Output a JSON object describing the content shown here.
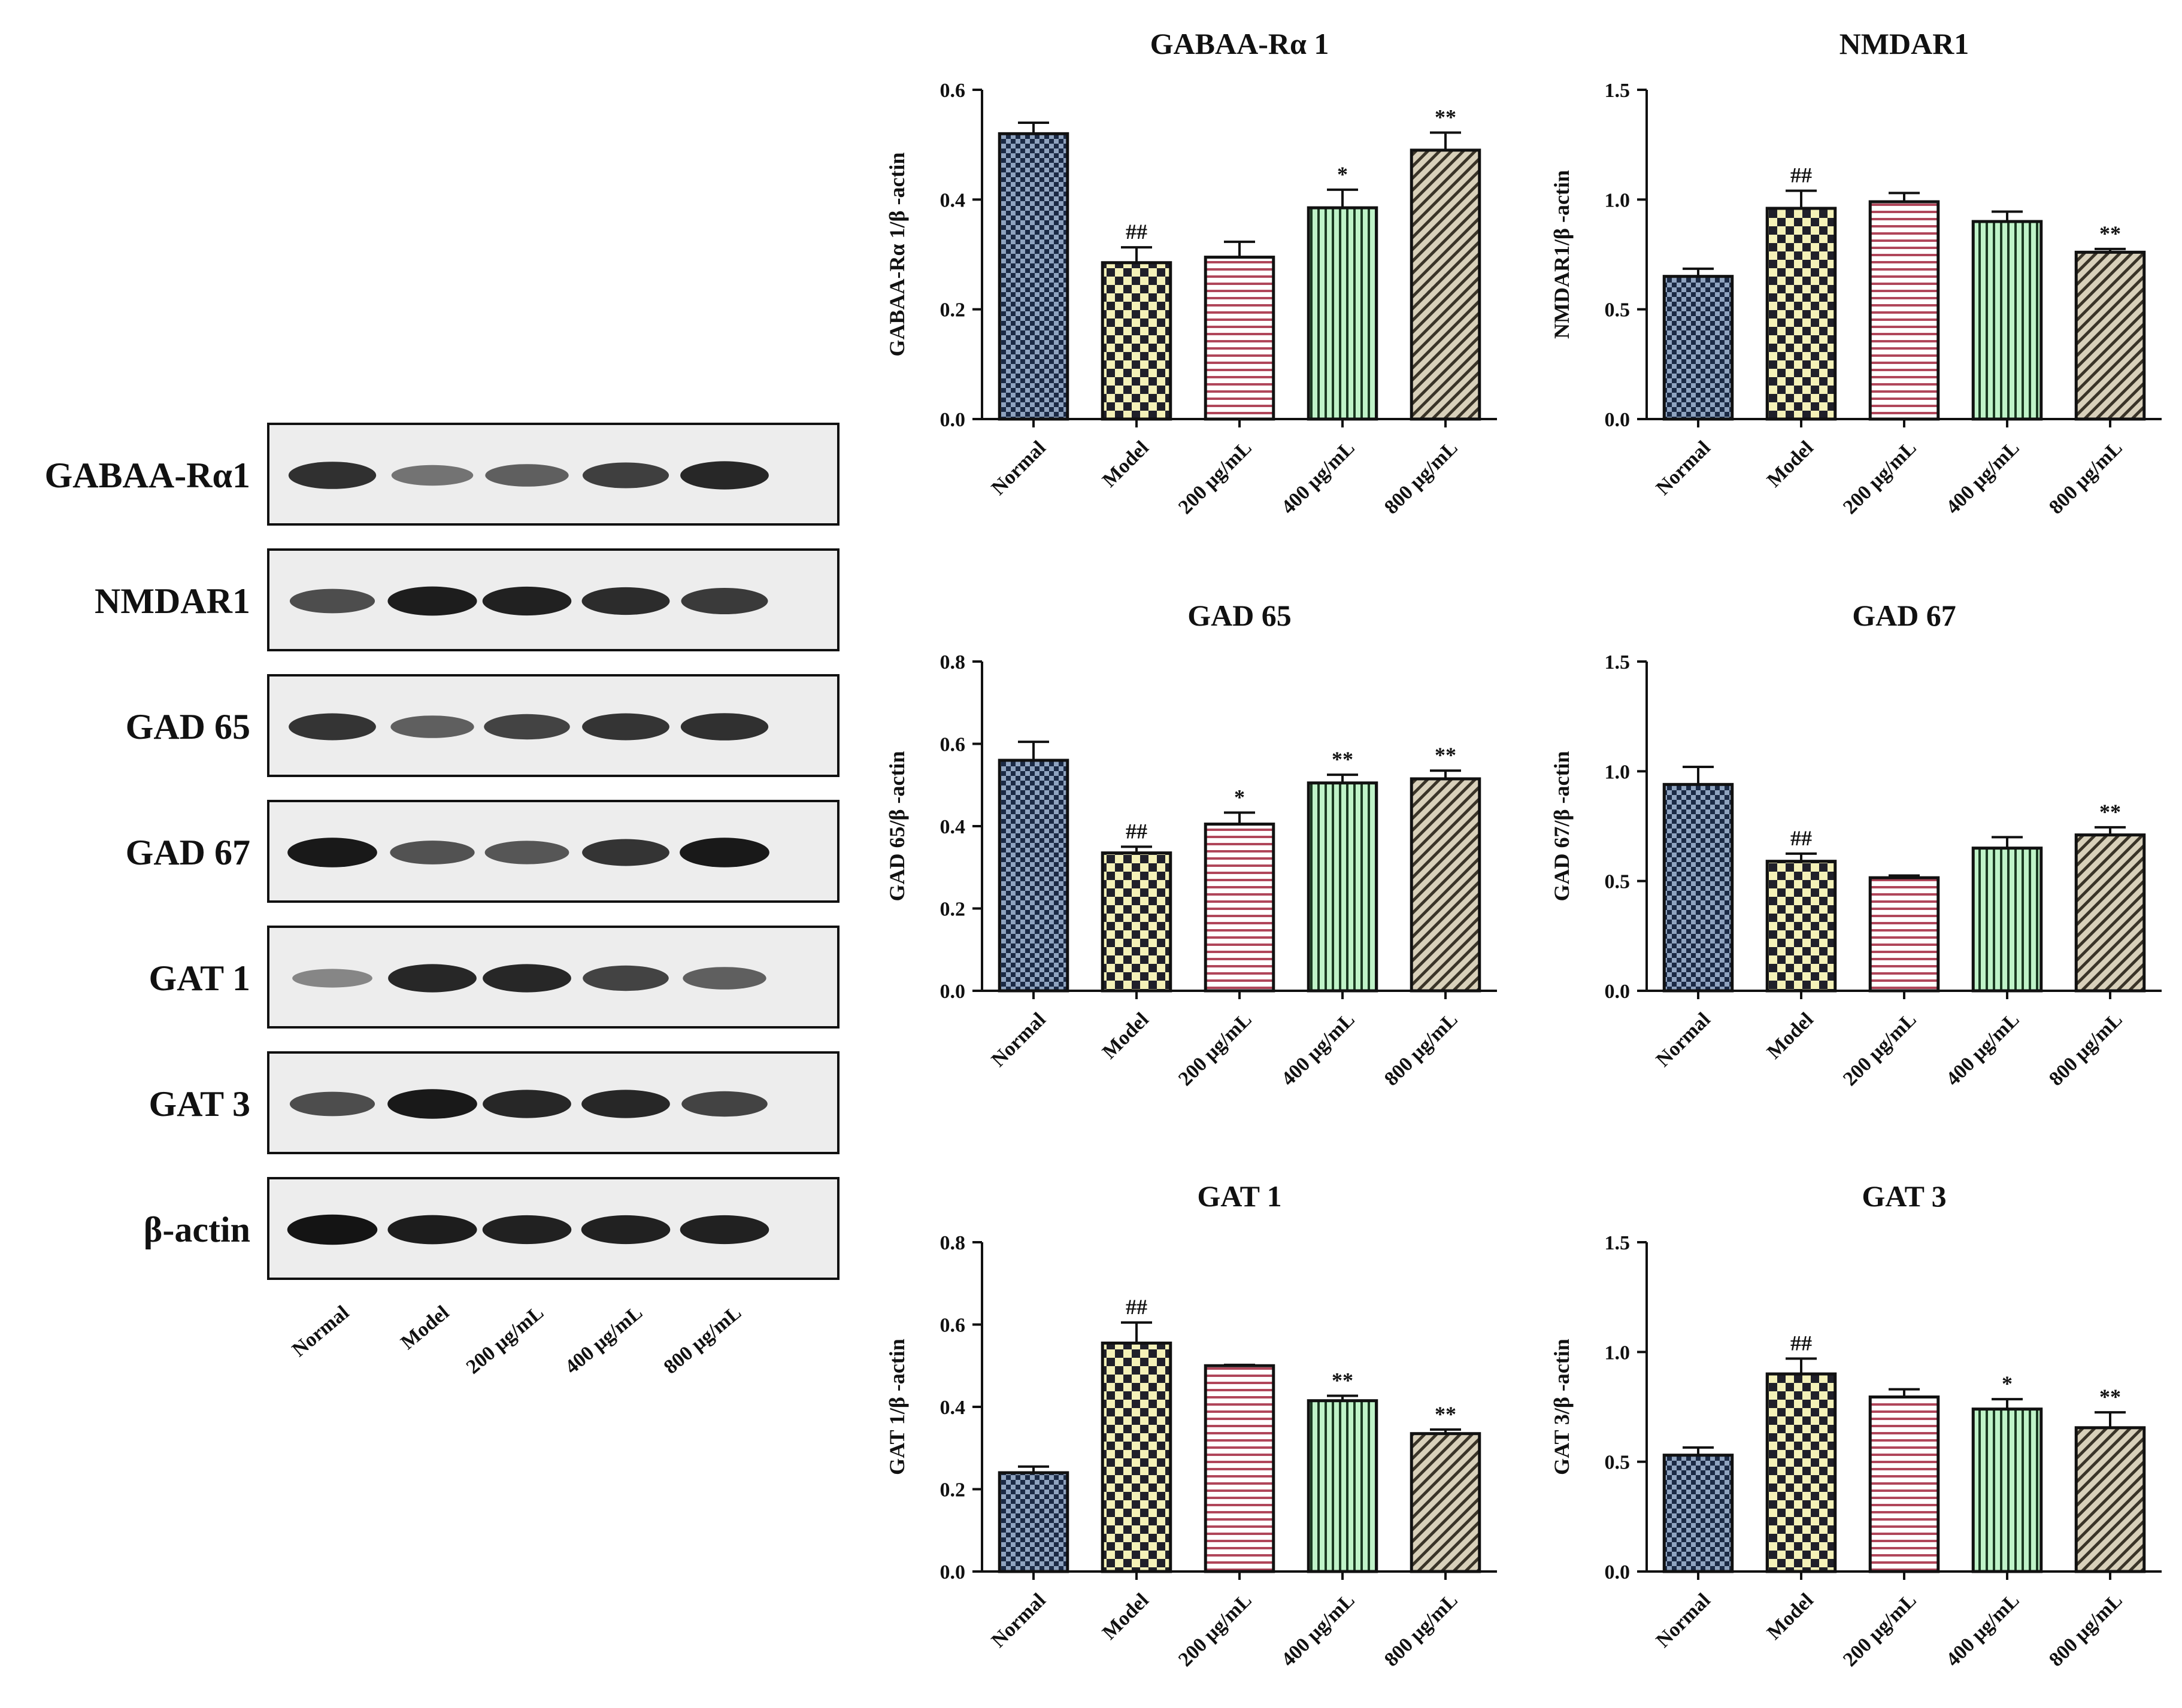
{
  "groups": [
    "Normal",
    "Model",
    "200 μg/mL",
    "400 μg/mL",
    "800 μg/mL"
  ],
  "western_blot": {
    "rows": [
      {
        "label": "GABAA-Rα1",
        "intensity": [
          0.8,
          0.45,
          0.55,
          0.72,
          0.85
        ]
      },
      {
        "label": "NMDAR1",
        "intensity": [
          0.65,
          0.9,
          0.88,
          0.82,
          0.75
        ]
      },
      {
        "label": "GAD 65",
        "intensity": [
          0.78,
          0.55,
          0.7,
          0.78,
          0.8
        ]
      },
      {
        "label": "GAD 67",
        "intensity": [
          0.92,
          0.62,
          0.6,
          0.78,
          0.92
        ]
      },
      {
        "label": "GAT 1",
        "intensity": [
          0.35,
          0.85,
          0.85,
          0.7,
          0.55
        ]
      },
      {
        "label": "GAT 3",
        "intensity": [
          0.65,
          0.92,
          0.85,
          0.85,
          0.7
        ]
      },
      {
        "label": "β-actin",
        "intensity": [
          0.95,
          0.9,
          0.88,
          0.88,
          0.88
        ]
      }
    ]
  },
  "fills": [
    {
      "bg": "#8fa3bf",
      "fg": "#1b2a45",
      "pattern": "checker"
    },
    {
      "bg": "#f4f1b8",
      "fg": "#20202a",
      "pattern": "checker-big"
    },
    {
      "bg": "#ffffff",
      "fg": "#b0465a",
      "pattern": "hlines"
    },
    {
      "bg": "#bff3c8",
      "fg": "#1b3a22",
      "pattern": "vlines"
    },
    {
      "bg": "#d8d0ba",
      "fg": "#3a3428",
      "pattern": "diag"
    }
  ],
  "chart_data": [
    {
      "type": "bar",
      "title": "GABAA-Rα 1",
      "ylabel": "GABAA-Rα 1/β -actin",
      "categories": [
        "Normal",
        "Model",
        "200 μg/mL",
        "400 μg/mL",
        "800 μg/mL"
      ],
      "values": [
        0.52,
        0.285,
        0.295,
        0.385,
        0.49
      ],
      "errors": [
        0.02,
        0.028,
        0.028,
        0.033,
        0.032
      ],
      "ylim": [
        0,
        0.6
      ],
      "yticks": [
        "0.0",
        "0.2",
        "0.4",
        "0.6"
      ],
      "annotations": [
        "",
        "##",
        "",
        "*",
        "**"
      ]
    },
    {
      "type": "bar",
      "title": "NMDAR1",
      "ylabel": "NMDAR1/β -actin",
      "categories": [
        "Normal",
        "Model",
        "200 μg/mL",
        "400 μg/mL",
        "800 μg/mL"
      ],
      "values": [
        0.65,
        0.96,
        0.99,
        0.9,
        0.76
      ],
      "errors": [
        0.035,
        0.08,
        0.04,
        0.045,
        0.015
      ],
      "ylim": [
        0,
        1.5
      ],
      "yticks": [
        "0.0",
        "0.5",
        "1.0",
        "1.5"
      ],
      "annotations": [
        "",
        "##",
        "",
        "",
        "**"
      ]
    },
    {
      "type": "bar",
      "title": "GAD 65",
      "ylabel": "GAD 65/β -actin",
      "categories": [
        "Normal",
        "Model",
        "200 μg/mL",
        "400 μg/mL",
        "800 μg/mL"
      ],
      "values": [
        0.56,
        0.335,
        0.405,
        0.505,
        0.515
      ],
      "errors": [
        0.045,
        0.015,
        0.028,
        0.02,
        0.02
      ],
      "ylim": [
        0,
        0.8
      ],
      "yticks": [
        "0.0",
        "0.2",
        "0.4",
        "0.6",
        "0.8"
      ],
      "annotations": [
        "",
        "##",
        "*",
        "**",
        "**"
      ]
    },
    {
      "type": "bar",
      "title": "GAD 67",
      "ylabel": "GAD 67/β -actin",
      "categories": [
        "Normal",
        "Model",
        "200 μg/mL",
        "400 μg/mL",
        "800 μg/mL"
      ],
      "values": [
        0.94,
        0.59,
        0.515,
        0.65,
        0.71
      ],
      "errors": [
        0.08,
        0.035,
        0.01,
        0.05,
        0.035
      ],
      "ylim": [
        0,
        1.5
      ],
      "yticks": [
        "0.0",
        "0.5",
        "1.0",
        "1.5"
      ],
      "annotations": [
        "",
        "##",
        "",
        "",
        "**"
      ]
    },
    {
      "type": "bar",
      "title": "GAT 1",
      "ylabel": "GAT 1/β -actin",
      "categories": [
        "Normal",
        "Model",
        "200 μg/mL",
        "400 μg/mL",
        "800 μg/mL"
      ],
      "values": [
        0.24,
        0.555,
        0.5,
        0.415,
        0.335
      ],
      "errors": [
        0.015,
        0.05,
        0.002,
        0.012,
        0.01
      ],
      "ylim": [
        0,
        0.8
      ],
      "yticks": [
        "0.0",
        "0.2",
        "0.4",
        "0.6",
        "0.8"
      ],
      "annotations": [
        "",
        "##",
        "",
        "**",
        "**"
      ]
    },
    {
      "type": "bar",
      "title": "GAT 3",
      "ylabel": "GAT 3/β -actin",
      "categories": [
        "Normal",
        "Model",
        "200 μg/mL",
        "400 μg/mL",
        "800 μg/mL"
      ],
      "values": [
        0.53,
        0.9,
        0.795,
        0.74,
        0.655
      ],
      "errors": [
        0.035,
        0.07,
        0.035,
        0.045,
        0.07
      ],
      "ylim": [
        0,
        1.5
      ],
      "yticks": [
        "0.0",
        "0.5",
        "1.0",
        "1.5"
      ],
      "annotations": [
        "",
        "##",
        "",
        "*",
        "**"
      ]
    }
  ]
}
